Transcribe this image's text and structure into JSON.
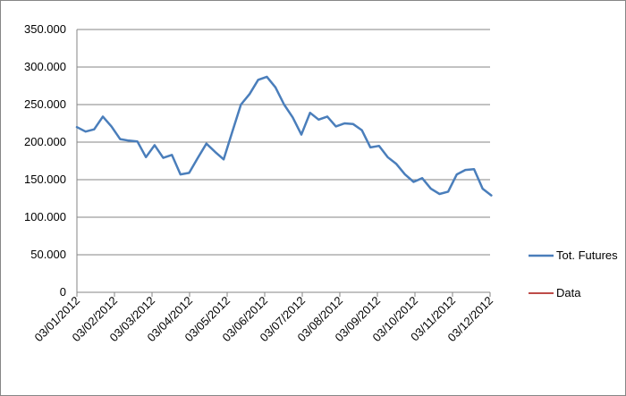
{
  "chart_data": {
    "type": "line",
    "title": "",
    "xlabel": "",
    "ylabel": "",
    "ylim": [
      0,
      350000
    ],
    "yticks": [
      0,
      50000,
      100000,
      150000,
      200000,
      250000,
      300000,
      350000
    ],
    "ytick_labels": [
      "0",
      "50.000",
      "100.000",
      "150.000",
      "200.000",
      "250.000",
      "300.000",
      "350.000"
    ],
    "xlim": [
      "2012-01-03",
      "2012-12-03"
    ],
    "xtick_labels": [
      "03/01/2012",
      "03/02/2012",
      "03/03/2012",
      "03/04/2012",
      "03/05/2012",
      "03/06/2012",
      "03/07/2012",
      "03/08/2012",
      "03/09/2012",
      "03/10/2012",
      "03/11/2012",
      "03/12/2012"
    ],
    "grid": "horizontal",
    "legend_position": "right",
    "series": [
      {
        "name": "Tot. Futures",
        "color": "#4a7ebb",
        "x": [
          "2012-01-03",
          "2012-01-10",
          "2012-01-17",
          "2012-01-24",
          "2012-01-31",
          "2012-02-07",
          "2012-02-14",
          "2012-02-21",
          "2012-02-28",
          "2012-03-06",
          "2012-03-13",
          "2012-03-20",
          "2012-03-27",
          "2012-04-03",
          "2012-04-10",
          "2012-04-17",
          "2012-04-24",
          "2012-05-01",
          "2012-05-08",
          "2012-05-15",
          "2012-05-22",
          "2012-05-29",
          "2012-06-05",
          "2012-06-12",
          "2012-06-19",
          "2012-06-26",
          "2012-07-03",
          "2012-07-10",
          "2012-07-17",
          "2012-07-24",
          "2012-07-31",
          "2012-08-07",
          "2012-08-14",
          "2012-08-21",
          "2012-08-28",
          "2012-09-04",
          "2012-09-11",
          "2012-09-18",
          "2012-09-25",
          "2012-10-02",
          "2012-10-09",
          "2012-10-16",
          "2012-10-23",
          "2012-10-30",
          "2012-11-06",
          "2012-11-13",
          "2012-11-20",
          "2012-11-27",
          "2012-12-04"
        ],
        "values": [
          220000,
          214000,
          217000,
          234000,
          221000,
          204000,
          202000,
          201000,
          180000,
          196000,
          179000,
          183000,
          157000,
          159000,
          179000,
          198000,
          187000,
          177000,
          214000,
          250000,
          264000,
          283000,
          287000,
          273000,
          250000,
          233000,
          210000,
          239000,
          230000,
          234000,
          221000,
          225000,
          224000,
          216000,
          193000,
          195000,
          180000,
          171000,
          157000,
          147000,
          152000,
          138000,
          131000,
          134000,
          157000,
          163000,
          164000,
          138000,
          129000
        ]
      },
      {
        "name": "Data",
        "color": "#be4b48",
        "x": [],
        "values": []
      }
    ]
  }
}
